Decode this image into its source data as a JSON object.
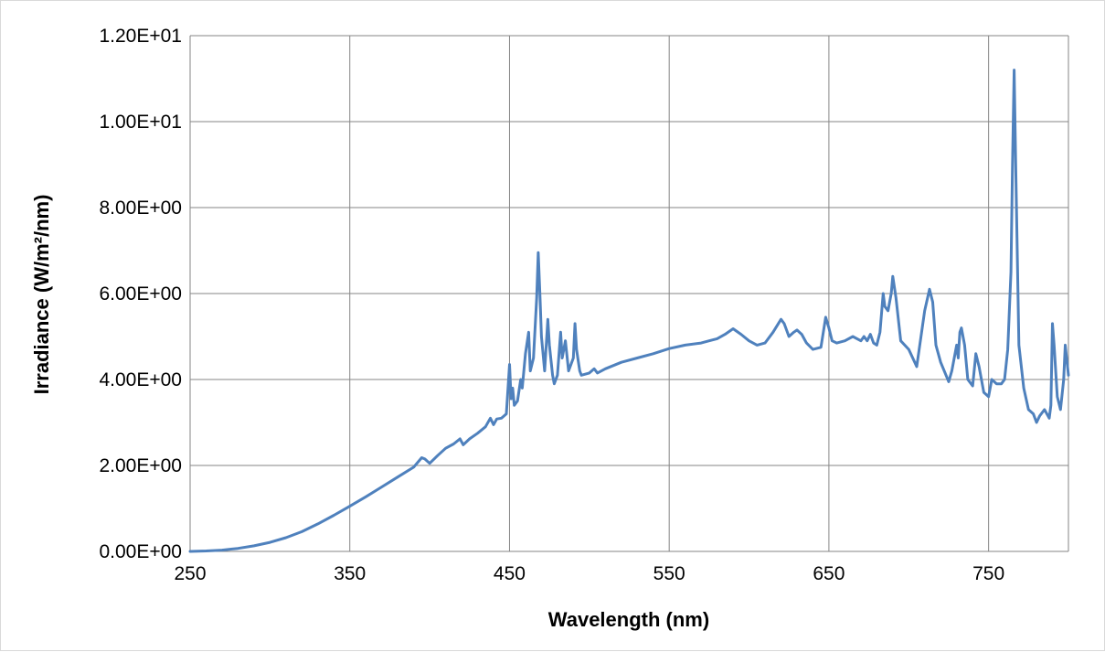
{
  "chart_data": {
    "type": "line",
    "title": "",
    "xlabel": "Wavelength (nm)",
    "ylabel": "Irradiance (W/m²/nm)",
    "xlim": [
      250,
      800
    ],
    "ylim": [
      0,
      12
    ],
    "x_ticks": [
      250,
      350,
      450,
      550,
      650,
      750
    ],
    "x_tick_labels": [
      "250",
      "350",
      "450",
      "550",
      "650",
      "750"
    ],
    "y_ticks": [
      0,
      2,
      4,
      6,
      8,
      10,
      12
    ],
    "y_tick_labels": [
      "0.00E+00",
      "2.00E+00",
      "4.00E+00",
      "6.00E+00",
      "8.00E+00",
      "1.00E+01",
      "1.20E+01"
    ],
    "grid": true,
    "legend": "none",
    "line_color": "#4f81bd",
    "grid_color": "#868686",
    "series": [
      {
        "x": [
          250,
          260,
          270,
          280,
          290,
          300,
          310,
          320,
          330,
          340,
          350,
          360,
          370,
          380,
          390,
          395,
          397,
          400,
          405,
          410,
          415,
          419,
          420,
          421,
          425,
          430,
          435,
          438,
          440,
          442,
          445,
          448,
          450,
          451,
          452,
          453,
          455,
          457,
          458,
          460,
          462,
          463,
          465,
          467,
          468,
          469,
          470,
          472,
          474,
          475,
          477,
          478,
          480,
          482,
          483,
          485,
          487,
          490,
          491,
          492,
          494,
          495,
          500,
          503,
          505,
          510,
          520,
          530,
          540,
          550,
          560,
          570,
          575,
          580,
          585,
          590,
          595,
          600,
          605,
          610,
          615,
          620,
          622,
          625,
          628,
          630,
          633,
          636,
          640,
          645,
          648,
          650,
          652,
          655,
          660,
          665,
          670,
          672,
          674,
          676,
          678,
          680,
          682,
          684,
          685,
          687,
          689,
          690,
          692,
          695,
          700,
          705,
          710,
          713,
          715,
          717,
          720,
          725,
          727,
          730,
          731,
          732,
          733,
          735,
          737,
          740,
          742,
          744,
          747,
          750,
          752,
          755,
          758,
          760,
          762,
          764,
          765,
          766,
          767,
          769,
          772,
          775,
          778,
          780,
          782,
          785,
          788,
          789,
          790,
          791,
          793,
          795,
          797,
          798,
          800
        ],
        "y": [
          0.0,
          0.01,
          0.03,
          0.07,
          0.13,
          0.21,
          0.32,
          0.46,
          0.64,
          0.84,
          1.05,
          1.27,
          1.5,
          1.73,
          1.96,
          2.18,
          2.15,
          2.05,
          2.23,
          2.4,
          2.5,
          2.62,
          2.55,
          2.48,
          2.62,
          2.75,
          2.9,
          3.1,
          2.95,
          3.08,
          3.1,
          3.2,
          4.35,
          3.55,
          3.8,
          3.4,
          3.5,
          4.0,
          3.8,
          4.6,
          5.1,
          4.2,
          4.5,
          5.9,
          6.95,
          6.0,
          5.0,
          4.2,
          5.4,
          4.8,
          4.1,
          3.9,
          4.1,
          5.1,
          4.5,
          4.9,
          4.2,
          4.5,
          5.3,
          4.7,
          4.2,
          4.1,
          4.15,
          4.25,
          4.15,
          4.25,
          4.4,
          4.5,
          4.6,
          4.72,
          4.8,
          4.85,
          4.9,
          4.95,
          5.05,
          5.18,
          5.05,
          4.9,
          4.8,
          4.85,
          5.1,
          5.4,
          5.3,
          5.0,
          5.1,
          5.15,
          5.05,
          4.85,
          4.7,
          4.75,
          5.45,
          5.2,
          4.9,
          4.85,
          4.9,
          5.0,
          4.9,
          5.0,
          4.9,
          5.05,
          4.85,
          4.8,
          5.1,
          6.0,
          5.7,
          5.6,
          6.0,
          6.4,
          5.9,
          4.9,
          4.7,
          4.3,
          5.6,
          6.1,
          5.8,
          4.8,
          4.4,
          3.95,
          4.2,
          4.8,
          4.5,
          5.1,
          5.2,
          4.8,
          4.0,
          3.85,
          4.6,
          4.3,
          3.7,
          3.6,
          4.0,
          3.9,
          3.9,
          4.0,
          4.7,
          6.5,
          9.0,
          11.2,
          9.0,
          4.8,
          3.8,
          3.3,
          3.2,
          3.0,
          3.15,
          3.3,
          3.1,
          3.4,
          5.3,
          4.8,
          3.6,
          3.3,
          4.0,
          4.8,
          4.1
        ]
      }
    ]
  }
}
